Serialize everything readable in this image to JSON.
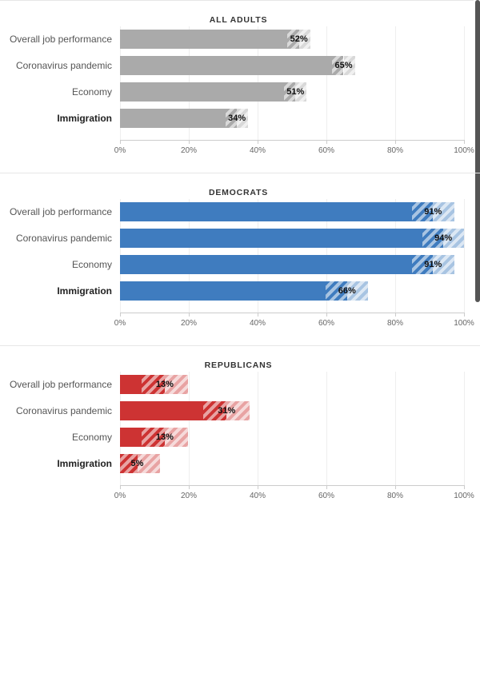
{
  "chart_data": [
    {
      "type": "bar",
      "orientation": "horizontal",
      "title": "ALL ADULTS",
      "categories": [
        "Overall job performance",
        "Coronavirus pandemic",
        "Economy",
        "Immigration"
      ],
      "values": [
        52,
        65,
        51,
        34
      ],
      "value_labels": [
        "52%",
        "65%",
        "51%",
        "34%"
      ],
      "margin_of_error": [
        3.3,
        3.3,
        3.3,
        3.3
      ],
      "bar_color": "#aaaaaa",
      "xlim": [
        0,
        100
      ],
      "x_ticks": [
        "0%",
        "20%",
        "40%",
        "60%",
        "80%",
        "100%"
      ],
      "bold_categories": [
        "Immigration"
      ],
      "grid": true
    },
    {
      "type": "bar",
      "orientation": "horizontal",
      "title": "DEMOCRATS",
      "categories": [
        "Overall job performance",
        "Coronavirus pandemic",
        "Economy",
        "Immigration"
      ],
      "values": [
        91,
        94,
        91,
        66
      ],
      "value_labels": [
        "91%",
        "94%",
        "91%",
        "66%"
      ],
      "margin_of_error": [
        6.2,
        6.2,
        6.2,
        6.2
      ],
      "bar_color": "#3f7cbf",
      "xlim": [
        0,
        100
      ],
      "x_ticks": [
        "0%",
        "20%",
        "40%",
        "60%",
        "80%",
        "100%"
      ],
      "bold_categories": [
        "Immigration"
      ],
      "grid": true
    },
    {
      "type": "bar",
      "orientation": "horizontal",
      "title": "REPUBLICANS",
      "categories": [
        "Overall job performance",
        "Coronavirus pandemic",
        "Economy",
        "Immigration"
      ],
      "values": [
        13,
        31,
        13,
        5
      ],
      "value_labels": [
        "13%",
        "31%",
        "13%",
        "5%"
      ],
      "margin_of_error": [
        6.7,
        6.7,
        6.7,
        6.7
      ],
      "bar_color": "#cd3333",
      "xlim": [
        0,
        100
      ],
      "x_ticks": [
        "0%",
        "20%",
        "40%",
        "60%",
        "80%",
        "100%"
      ],
      "bold_categories": [
        "Immigration"
      ],
      "grid": true
    }
  ]
}
